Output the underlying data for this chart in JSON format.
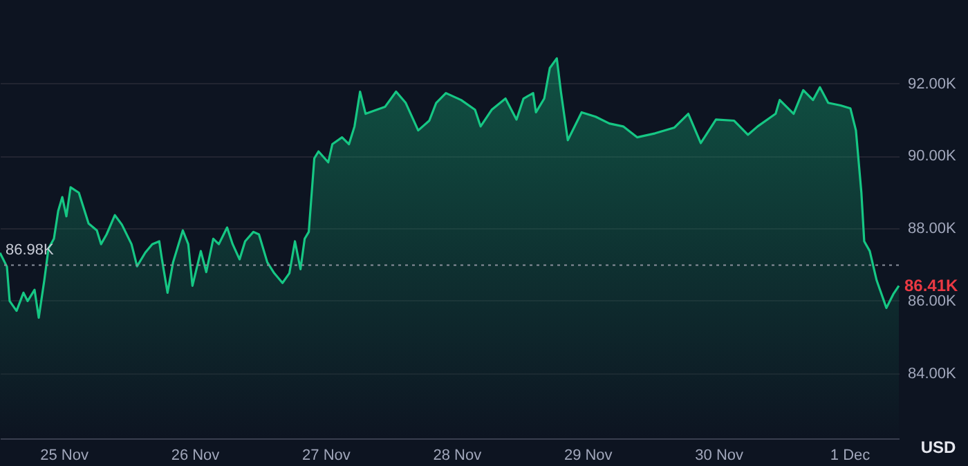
{
  "chart_data": {
    "type": "area",
    "ylabel": "USD",
    "x": [
      "--11-24T12:20",
      "--11-24T13:36",
      "--11-24T14:06",
      "--11-24T15:22",
      "--11-24T16:38",
      "--11-24T17:24",
      "--11-24T18:40",
      "--11-24T19:26",
      "--11-24T20:27",
      "--11-24T21:13",
      "--11-24T22:13",
      "--11-24T23:00",
      "--11-24T23:45",
      "--11-25T00:30",
      "--11-25T01:16",
      "--11-25T02:47",
      "--11-25T04:34",
      "--11-25T06:05",
      "--11-25T06:51",
      "--11-25T07:52",
      "--11-25T09:23",
      "--11-25T10:40",
      "--11-25T12:26",
      "--11-25T13:27",
      "--11-25T14:58",
      "--11-25T16:14",
      "--11-25T17:31",
      "--11-25T18:01",
      "--11-25T19:02",
      "--11-25T20:03",
      "--11-25T21:50",
      "--11-25T22:50",
      "--11-25T23:36",
      "--11-26T01:08",
      "--11-26T02:08",
      "--11-26T03:25",
      "--11-26T04:26",
      "--11-26T05:57",
      "--11-26T06:58",
      "--11-26T08:14",
      "--11-26T09:15",
      "--11-26T10:46",
      "--11-26T11:47",
      "--11-26T13:19",
      "--11-26T14:35",
      "--11-26T16:06",
      "--11-26T17:22",
      "--11-26T18:23",
      "--11-26T19:24",
      "--11-26T20:10",
      "--11-26T20:55",
      "--11-26T21:56",
      "--11-26T22:42",
      "--11-27T00:29",
      "--11-27T01:14",
      "--11-27T03:01",
      "--11-27T04:17",
      "--11-27T05:18",
      "--11-27T06:19",
      "--11-27T07:20",
      "--11-27T09:22",
      "--11-27T10:53",
      "--11-27T12:55",
      "--11-27T14:41",
      "--11-27T16:58",
      "--11-27T19:00",
      "--11-27T20:16",
      "--11-27T22:03",
      "--11-28T00:50",
      "--11-28T03:23",
      "--11-28T04:24",
      "--11-28T06:26",
      "--11-28T08:58",
      "--11-28T10:59",
      "--11-28T12:16",
      "--11-28T14:02",
      "--11-28T14:33",
      "--11-28T16:04",
      "--11-28T17:05",
      "--11-28T18:22",
      "--11-28T19:07",
      "--11-28T20:23",
      "--11-28T22:55",
      "--11-29T01:28",
      "--11-29T04:00",
      "--11-29T06:32",
      "--11-29T09:05",
      "--11-29T12:23",
      "--11-29T15:56",
      "--11-29T18:28",
      "--11-29T20:45",
      "--11-29T23:32",
      "--11-30T02:50",
      "--11-30T05:23",
      "--11-30T07:10",
      "--11-30T10:28",
      "--11-30T11:13",
      "--11-30T13:46",
      "--11-30T15:32",
      "--11-30T17:19",
      "--11-30T18:35",
      "--11-30T20:06",
      "--11-30T22:23",
      "--12-01T00:10",
      "--12-01T01:11",
      "--12-01T02:11",
      "--12-01T02:42",
      "--12-01T03:43",
      "--12-01T04:59",
      "--12-01T06:46",
      "--12-01T08:02",
      "--12-01T09:03"
    ],
    "series": [
      {
        "color": "#16c784",
        "values": [
          87.32,
          86.94,
          85.99,
          85.72,
          86.22,
          85.99,
          86.3,
          85.53,
          86.56,
          87.44,
          87.71,
          88.48,
          88.86,
          88.33,
          89.13,
          88.98,
          88.13,
          87.94,
          87.56,
          87.83,
          88.36,
          88.1,
          87.56,
          86.95,
          87.33,
          87.56,
          87.64,
          87.14,
          86.22,
          87.06,
          87.94,
          87.56,
          86.41,
          87.37,
          86.79,
          87.71,
          87.56,
          88.02,
          87.56,
          87.14,
          87.64,
          87.9,
          87.83,
          87.06,
          86.76,
          86.49,
          86.76,
          87.64,
          86.87,
          87.71,
          87.9,
          89.93,
          90.12,
          89.82,
          90.32,
          90.51,
          90.32,
          90.81,
          91.77,
          91.16,
          91.27,
          91.35,
          91.77,
          91.46,
          90.7,
          90.97,
          91.46,
          91.73,
          91.54,
          91.27,
          90.81,
          91.27,
          91.58,
          91.0,
          91.58,
          91.73,
          91.2,
          91.58,
          92.42,
          92.69,
          91.77,
          90.43,
          91.2,
          91.08,
          90.89,
          90.81,
          90.51,
          90.62,
          90.78,
          91.16,
          90.35,
          91.0,
          90.97,
          90.58,
          90.81,
          91.16,
          91.54,
          91.16,
          91.81,
          91.54,
          91.89,
          91.46,
          91.39,
          91.31,
          90.7,
          88.98,
          87.64,
          87.37,
          86.56,
          85.8,
          86.18,
          86.41
        ]
      }
    ],
    "xlim": [
      "--11-24T12:20",
      "--12-01T09:03"
    ],
    "xticks": [
      {
        "value": "--11-25",
        "label": "25 Nov"
      },
      {
        "value": "--11-26",
        "label": "26 Nov"
      },
      {
        "value": "--11-27",
        "label": "27 Nov"
      },
      {
        "value": "--11-28",
        "label": "28 Nov"
      },
      {
        "value": "--11-29",
        "label": "29 Nov"
      },
      {
        "value": "--11-30",
        "label": "30 Nov"
      },
      {
        "value": "--12-01",
        "label": "1 Dec"
      }
    ],
    "ylim": [
      82.2,
      94.3
    ],
    "yticks": [
      {
        "value": 84,
        "label": "84.00K"
      },
      {
        "value": 86,
        "label": "86.00K"
      },
      {
        "value": 88,
        "label": "88.00K"
      },
      {
        "value": 90,
        "label": "90.00K"
      },
      {
        "value": 92,
        "label": "92.00K"
      }
    ],
    "grid": "y",
    "marker": "none",
    "line_style": "solid",
    "ref_lines": [
      {
        "axis": "y",
        "value": 86.98,
        "label": "86.98K",
        "color": "#8a8f9c",
        "line_style": "dotted"
      }
    ],
    "annotations": [
      {
        "text": "86.41K",
        "x": "--12-01T09:03",
        "y": 86.41
      }
    ]
  }
}
